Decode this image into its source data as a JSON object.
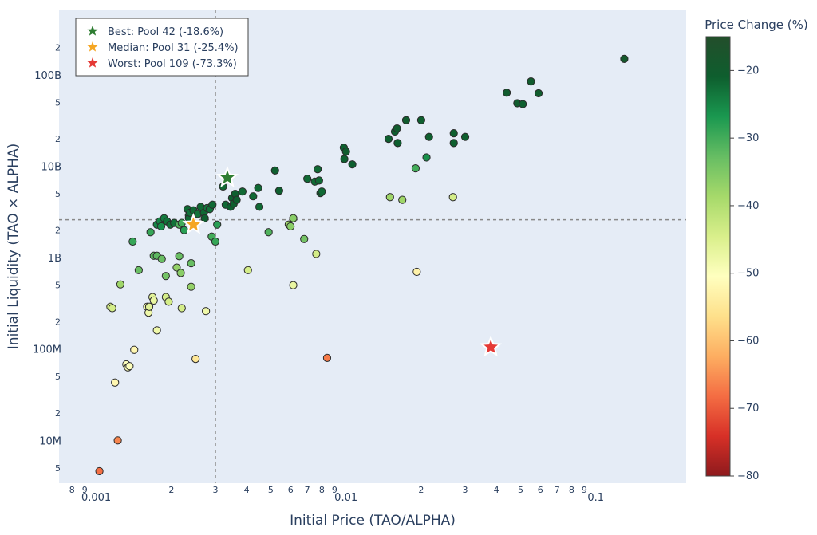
{
  "chart_data": {
    "type": "scatter",
    "xlabel": "Initial Price (TAO/ALPHA)",
    "ylabel": "Initial Liquidity (TAO × ALPHA)",
    "x_scale": "log",
    "y_scale": "log",
    "xlim": [
      0.00071,
      0.23
    ],
    "ylim": [
      3400000.0,
      520000000000.0
    ],
    "x_major_ticks": [
      {
        "value": 0.001,
        "label": "0.001"
      },
      {
        "value": 0.01,
        "label": "0.01"
      },
      {
        "value": 0.1,
        "label": "0.1"
      }
    ],
    "x_minor_ticks": [
      {
        "value": 0.0008,
        "label": "8"
      },
      {
        "value": 0.0009,
        "label": "9"
      },
      {
        "value": 0.002,
        "label": "2"
      },
      {
        "value": 0.003,
        "label": "3"
      },
      {
        "value": 0.004,
        "label": "4"
      },
      {
        "value": 0.005,
        "label": "5"
      },
      {
        "value": 0.006,
        "label": "6"
      },
      {
        "value": 0.007,
        "label": "7"
      },
      {
        "value": 0.008,
        "label": "8"
      },
      {
        "value": 0.009,
        "label": "9"
      },
      {
        "value": 0.02,
        "label": "2"
      },
      {
        "value": 0.03,
        "label": "3"
      },
      {
        "value": 0.04,
        "label": "4"
      },
      {
        "value": 0.05,
        "label": "5"
      },
      {
        "value": 0.06,
        "label": "6"
      },
      {
        "value": 0.07,
        "label": "7"
      },
      {
        "value": 0.08,
        "label": "8"
      },
      {
        "value": 0.09,
        "label": "9"
      }
    ],
    "y_major_ticks": [
      {
        "value": 10000000.0,
        "label": "10M"
      },
      {
        "value": 100000000.0,
        "label": "100M"
      },
      {
        "value": 1000000000.0,
        "label": "1B"
      },
      {
        "value": 10000000000.0,
        "label": "10B"
      },
      {
        "value": 100000000000.0,
        "label": "100B"
      }
    ],
    "y_minor_ticks": [
      {
        "value": 5000000.0,
        "label": "5"
      },
      {
        "value": 20000000.0,
        "label": "2"
      },
      {
        "value": 50000000.0,
        "label": "5"
      },
      {
        "value": 200000000.0,
        "label": "2"
      },
      {
        "value": 500000000.0,
        "label": "5"
      },
      {
        "value": 2000000000.0,
        "label": "2"
      },
      {
        "value": 5000000000.0,
        "label": "5"
      },
      {
        "value": 20000000000.0,
        "label": "2"
      },
      {
        "value": 50000000000.0,
        "label": "5"
      },
      {
        "value": 200000000000.0,
        "label": "2"
      }
    ],
    "reference_lines": {
      "x": 0.003,
      "y": 2600000000.0
    },
    "grid": false,
    "colorbar": {
      "title": "Price Change (%)",
      "range": [
        -80,
        -15
      ],
      "ticks": [
        -20,
        -30,
        -40,
        -50,
        -60,
        -70,
        -80
      ],
      "colors": [
        "#8e1a1d",
        "#d73027",
        "#f46d43",
        "#fdae61",
        "#fee08b",
        "#ffffbf",
        "#d9ef8b",
        "#a6d96a",
        "#66bd63",
        "#1a9850",
        "#0e5e2e",
        "#234e2b"
      ]
    },
    "legend": {
      "position": "top-left",
      "entries": [
        {
          "label": "Best: Pool 42 (-18.6%)",
          "color": "#2e7d32"
        },
        {
          "label": "Median: Pool 31 (-25.4%)",
          "color": "#f5a623"
        },
        {
          "label": "Worst: Pool 109 (-73.3%)",
          "color": "#e53935"
        }
      ]
    },
    "highlighted": [
      {
        "name": "Best",
        "x": 0.00335,
        "y": 7500000000.0,
        "change": -18.6,
        "color": "#2e7d32"
      },
      {
        "name": "Median",
        "x": 0.00245,
        "y": 2300000000.0,
        "change": -25.4,
        "color": "#f5a623"
      },
      {
        "name": "Worst",
        "x": 0.038,
        "y": 105000000.0,
        "change": -73.3,
        "color": "#e53935"
      }
    ],
    "points": [
      [
        0.00103,
        4600000.0,
        -68
      ],
      [
        0.00122,
        10000000.0,
        -66
      ],
      [
        0.00119,
        43000000.0,
        -52
      ],
      [
        0.00132,
        68000000.0,
        -50
      ],
      [
        0.00134,
        63000000.0,
        -50
      ],
      [
        0.00136,
        65000000.0,
        -50
      ],
      [
        0.00142,
        98000000.0,
        -52
      ],
      [
        0.00114,
        290000000.0,
        -44
      ],
      [
        0.00116,
        280000000.0,
        -44
      ],
      [
        0.00125,
        510000000.0,
        -38
      ],
      [
        0.0014,
        1500000000.0,
        -29
      ],
      [
        0.00148,
        730000000.0,
        -33
      ],
      [
        0.0016,
        290000000.0,
        -48
      ],
      [
        0.00162,
        250000000.0,
        -48
      ],
      [
        0.00163,
        290000000.0,
        -46
      ],
      [
        0.00168,
        370000000.0,
        -46
      ],
      [
        0.0017,
        340000000.0,
        -47
      ],
      [
        0.00175,
        160000000.0,
        -48
      ],
      [
        0.00165,
        1900000000.0,
        -29
      ],
      [
        0.0017,
        1050000000.0,
        -32
      ],
      [
        0.00175,
        1050000000.0,
        -32
      ],
      [
        0.00183,
        970000000.0,
        -33
      ],
      [
        0.0019,
        630000000.0,
        -34
      ],
      [
        0.0019,
        370000000.0,
        -44
      ],
      [
        0.00195,
        330000000.0,
        -44
      ],
      [
        0.00175,
        2300000000.0,
        -25
      ],
      [
        0.0018,
        2500000000.0,
        -25
      ],
      [
        0.00182,
        2200000000.0,
        -26
      ],
      [
        0.00187,
        2700000000.0,
        -24
      ],
      [
        0.00192,
        2500000000.0,
        -23
      ],
      [
        0.00198,
        2300000000.0,
        -23
      ],
      [
        0.00205,
        2400000000.0,
        -23
      ],
      [
        0.0021,
        780000000.0,
        -37
      ],
      [
        0.00215,
        1040000000.0,
        -33
      ],
      [
        0.00215,
        2300000000.0,
        -31
      ],
      [
        0.0022,
        2400000000.0,
        -30
      ],
      [
        0.00225,
        2000000000.0,
        -28
      ],
      [
        0.0022,
        280000000.0,
        -44
      ],
      [
        0.00218,
        680000000.0,
        -36
      ],
      [
        0.00232,
        3400000000.0,
        -22
      ],
      [
        0.00235,
        2900000000.0,
        -22
      ],
      [
        0.00235,
        2700000000.0,
        -22
      ],
      [
        0.00238,
        3100000000.0,
        -23
      ],
      [
        0.00245,
        3300000000.0,
        -22
      ],
      [
        0.00245,
        2200000000.0,
        -25
      ],
      [
        0.0024,
        870000000.0,
        -33
      ],
      [
        0.0024,
        480000000.0,
        -37
      ],
      [
        0.0025,
        78000000.0,
        -55
      ],
      [
        0.00255,
        3000000000.0,
        -23
      ],
      [
        0.00262,
        3600000000.0,
        -22
      ],
      [
        0.0027,
        3100000000.0,
        -22
      ],
      [
        0.00272,
        2700000000.0,
        -21
      ],
      [
        0.00278,
        3500000000.0,
        -23
      ],
      [
        0.00285,
        3400000000.0,
        -23
      ],
      [
        0.00275,
        260000000.0,
        -48
      ],
      [
        0.00292,
        3800000000.0,
        -22
      ],
      [
        0.0029,
        1700000000.0,
        -30
      ],
      [
        0.003,
        1500000000.0,
        -29
      ],
      [
        0.00305,
        2300000000.0,
        -28
      ],
      [
        0.00322,
        6000000000.0,
        -22
      ],
      [
        0.0033,
        3800000000.0,
        -22
      ],
      [
        0.00345,
        3600000000.0,
        -21
      ],
      [
        0.0035,
        4500000000.0,
        -21
      ],
      [
        0.00355,
        3900000000.0,
        -21
      ],
      [
        0.0036,
        5000000000.0,
        -21
      ],
      [
        0.00365,
        4300000000.0,
        -21
      ],
      [
        0.00385,
        5300000000.0,
        -22
      ],
      [
        0.00405,
        730000000.0,
        -44
      ],
      [
        0.00425,
        4700000000.0,
        -22
      ],
      [
        0.00445,
        5800000000.0,
        -22
      ],
      [
        0.0045,
        3600000000.0,
        -22
      ],
      [
        0.0049,
        1900000000.0,
        -31
      ],
      [
        0.0052,
        9000000000.0,
        -21
      ],
      [
        0.0054,
        5400000000.0,
        -21
      ],
      [
        0.0059,
        2300000000.0,
        -38
      ],
      [
        0.006,
        2200000000.0,
        -36
      ],
      [
        0.00615,
        2700000000.0,
        -36
      ],
      [
        0.00615,
        500000000.0,
        -47
      ],
      [
        0.0068,
        1600000000.0,
        -34
      ],
      [
        0.007,
        7300000000.0,
        -22
      ],
      [
        0.0075,
        6800000000.0,
        -22
      ],
      [
        0.0076,
        1100000000.0,
        -44
      ],
      [
        0.0077,
        9300000000.0,
        -22
      ],
      [
        0.0078,
        7000000000.0,
        -22
      ],
      [
        0.0079,
        5100000000.0,
        -22
      ],
      [
        0.008,
        5300000000.0,
        -22
      ],
      [
        0.0084,
        80000000.0,
        -67
      ],
      [
        0.0098,
        16000000000.0,
        -21
      ],
      [
        0.00985,
        12000000000.0,
        -21
      ],
      [
        0.01,
        14500000000.0,
        -20
      ],
      [
        0.0106,
        10500000000.0,
        -21
      ],
      [
        0.0148,
        20000000000.0,
        -21
      ],
      [
        0.015,
        4600000000.0,
        -38
      ],
      [
        0.0157,
        24000000000.0,
        -21
      ],
      [
        0.016,
        26000000000.0,
        -20
      ],
      [
        0.0161,
        18000000000.0,
        -21
      ],
      [
        0.0168,
        4300000000.0,
        -38
      ],
      [
        0.0174,
        32000000000.0,
        -20
      ],
      [
        0.019,
        9500000000.0,
        -30
      ],
      [
        0.0192,
        700000000.0,
        -53
      ],
      [
        0.02,
        32000000000.0,
        -21
      ],
      [
        0.021,
        12500000000.0,
        -26
      ],
      [
        0.0215,
        21000000000.0,
        -21
      ],
      [
        0.027,
        23000000000.0,
        -21
      ],
      [
        0.027,
        18000000000.0,
        -21
      ],
      [
        0.0268,
        4600000000.0,
        -44
      ],
      [
        0.03,
        21000000000.0,
        -21
      ],
      [
        0.044,
        64000000000.0,
        -20
      ],
      [
        0.0485,
        49000000000.0,
        -20
      ],
      [
        0.051,
        48000000000.0,
        -21
      ],
      [
        0.055,
        85000000000.0,
        -20
      ],
      [
        0.059,
        63000000000.0,
        -20
      ],
      [
        0.13,
        150000000000.0,
        -19
      ]
    ]
  }
}
